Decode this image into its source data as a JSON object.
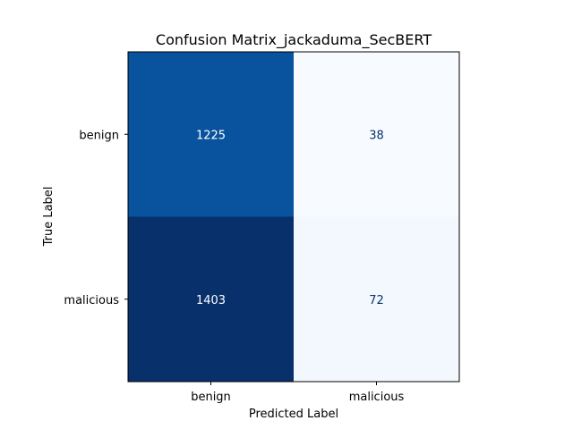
{
  "chart_data": {
    "type": "heatmap",
    "title": "Confusion Matrix_jackaduma_SecBERT",
    "xlabel": "Predicted Label",
    "ylabel": "True Label",
    "x_categories": [
      "benign",
      "malicious"
    ],
    "y_categories": [
      "benign",
      "malicious"
    ],
    "values": [
      [
        1225,
        38
      ],
      [
        1403,
        72
      ]
    ],
    "colormap": "Blues",
    "colorbar": false,
    "grid": false
  }
}
